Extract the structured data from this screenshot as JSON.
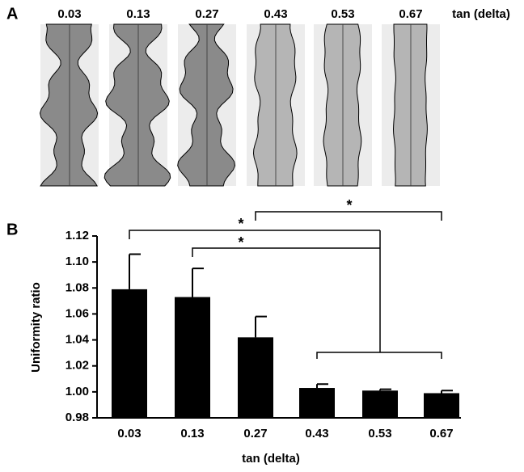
{
  "panel_a": {
    "label": "A",
    "columns": [
      "0.03",
      "0.13",
      "0.27",
      "0.43",
      "0.53",
      "0.67"
    ],
    "axis_label": "tan (delta)"
  },
  "chart_data": {
    "type": "bar",
    "panel_label": "B",
    "categories": [
      "0.03",
      "0.13",
      "0.27",
      "0.43",
      "0.53",
      "0.67"
    ],
    "values": [
      1.079,
      1.073,
      1.042,
      1.003,
      1.001,
      0.999
    ],
    "errors": [
      0.027,
      0.022,
      0.016,
      0.003,
      0.001,
      0.002
    ],
    "color": "#000000",
    "y_label": "Uniformity ratio",
    "x_label": "tan (delta)",
    "ylim": [
      0.98,
      1.12
    ],
    "yticks": [
      0.98,
      {
        "value": 1,
        "label": "1.00"
      },
      1.02,
      1.04,
      1.06,
      1.08,
      {
        "value": 1.1,
        "label": "1.10"
      },
      1.12
    ],
    "annotations": [
      "*",
      "*",
      "*"
    ]
  }
}
